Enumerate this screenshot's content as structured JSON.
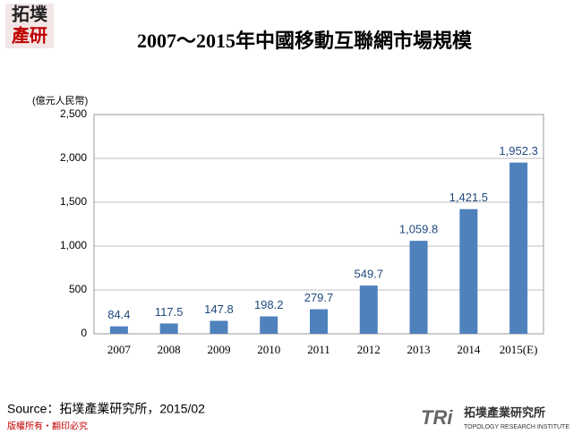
{
  "header": {
    "logo": [
      "拓墣",
      "產研"
    ]
  },
  "chart_data": {
    "type": "bar",
    "title": "2007～2015年中國移動互聯網市場規模",
    "y_label": "(億元人民幣)",
    "categories": [
      "2007",
      "2008",
      "2009",
      "2010",
      "2011",
      "2012",
      "2013",
      "2014",
      "2015(E)"
    ],
    "values": [
      84.4,
      117.5,
      147.8,
      198.2,
      279.7,
      549.7,
      1059.8,
      1421.5,
      1952.3
    ],
    "value_labels": [
      "84.4",
      "117.5",
      "147.8",
      "198.2",
      "279.7",
      "549.7",
      "1,059.8",
      "1,421.5",
      "1,952.3"
    ],
    "color": "#4f81bd",
    "ylim": [
      0,
      2500
    ],
    "yticks": [
      0,
      500,
      {
        "value": 1000,
        "label": "1,000"
      },
      {
        "value": 1500,
        "label": "1,500"
      },
      {
        "value": 2000,
        "label": "2,000"
      },
      {
        "value": 2500,
        "label": "2,500"
      }
    ],
    "grid": true
  },
  "footer": {
    "source": "Source：拓墣產業研究所，2015/02",
    "copyright": "版權所有‧翻印必究",
    "brand": "TRi",
    "brand_name": "拓墣產業研究所",
    "brand_english": "TOPOLOGY RESEARCH INSTITUTE"
  }
}
